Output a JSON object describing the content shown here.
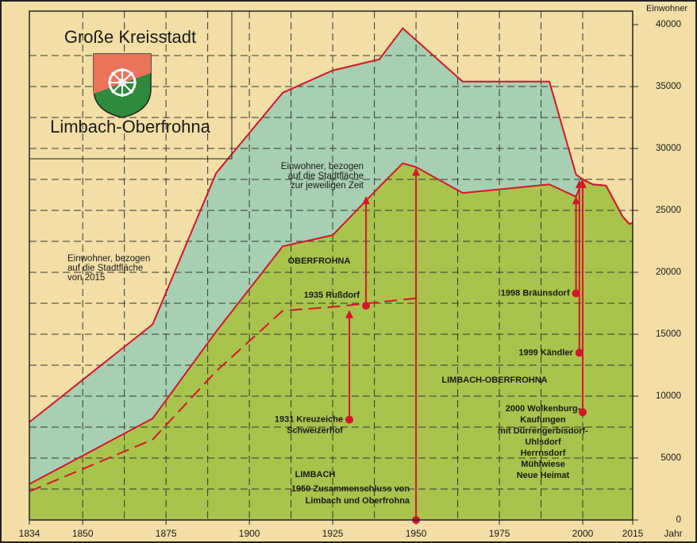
{
  "chart_data": {
    "type": "area",
    "title": [
      "Große Kreisstadt",
      "Limbach-Oberfrohna"
    ],
    "y_label": "Einwohner",
    "x_label": "Jahr",
    "xlim": [
      1834,
      2015
    ],
    "xticks": [
      1834,
      1850,
      1875,
      1900,
      1925,
      1950,
      1975,
      2000,
      2015
    ],
    "ylim": [
      0,
      40000
    ],
    "yticks": [
      0,
      5000,
      10000,
      15000,
      20000,
      25000,
      30000,
      35000,
      40000
    ],
    "grid": true,
    "series": [
      {
        "name": [
          "Einwohner, bezogen",
          "auf die Stadtfläche",
          "von 2015"
        ],
        "color": "#a7d0b2",
        "line_color": "#d6142b",
        "x": [
          1834,
          1871,
          1890,
          1910,
          1925,
          1939,
          1946,
          1964,
          1990,
          1998,
          2000,
          2003,
          2007,
          2010,
          2012,
          2014,
          2015
        ],
        "values": [
          7900,
          15800,
          28000,
          34500,
          36300,
          37200,
          39700,
          35400,
          35400,
          27900,
          27500,
          27100,
          27000,
          25500,
          24500,
          23900,
          24000
        ]
      },
      {
        "name": [
          "Einwohner, bezogen",
          "auf die Stadtfläche",
          "zur jeweiligen Zeit"
        ],
        "color": "#a9c44c",
        "line_color": "#d6142b",
        "x": [
          1834,
          1871,
          1890,
          1910,
          1925,
          1939,
          1946,
          1950,
          1964,
          1990,
          1998,
          2000,
          2003,
          2007,
          2010,
          2012,
          2014,
          2015
        ],
        "values": [
          2900,
          8200,
          15200,
          22100,
          23000,
          26900,
          28800,
          28500,
          26400,
          27100,
          26100,
          27500,
          27100,
          27000,
          25500,
          24500,
          23900,
          24000
        ]
      },
      {
        "name": null,
        "color": null,
        "line_color": "#d6142b",
        "dashed": true,
        "x": [
          1834,
          1871,
          1890,
          1910,
          1925,
          1950
        ],
        "values": [
          2300,
          6500,
          12000,
          16900,
          17200,
          17900
        ]
      }
    ],
    "labels": [
      "OBERFROHNA",
      "LIMBACH-OBERFROHNA",
      "LIMBACH"
    ],
    "events": [
      {
        "label": [
          "1931 Kreuzeiche",
          "Schweizerhof"
        ],
        "x": 1930,
        "from": 8100,
        "to": 17000
      },
      {
        "label": [
          "1935 Rußdorf"
        ],
        "x": 1935,
        "from": 17300,
        "to": 26200
      },
      {
        "label": [
          "1950 Zusammenschluss von",
          "Limbach und Oberfrohna"
        ],
        "x": 1950,
        "from": 0,
        "to": 28500
      },
      {
        "label": [
          "1998 Bräunsdorf"
        ],
        "x": 1998,
        "from": 18300,
        "to": 26200
      },
      {
        "label": [
          "1999 Kändler"
        ],
        "x": 1999,
        "from": 13500,
        "to": 27500
      },
      {
        "label": [
          "2000 Wolkenburg-",
          "Kaufungen",
          "mit Dürrengerbisdorf-",
          "Uhlsdorf",
          "Herrnsdorf",
          "Mühlwiese",
          "Neue Heimat"
        ],
        "x": 2000,
        "from": 8700,
        "to": 27500
      }
    ]
  }
}
